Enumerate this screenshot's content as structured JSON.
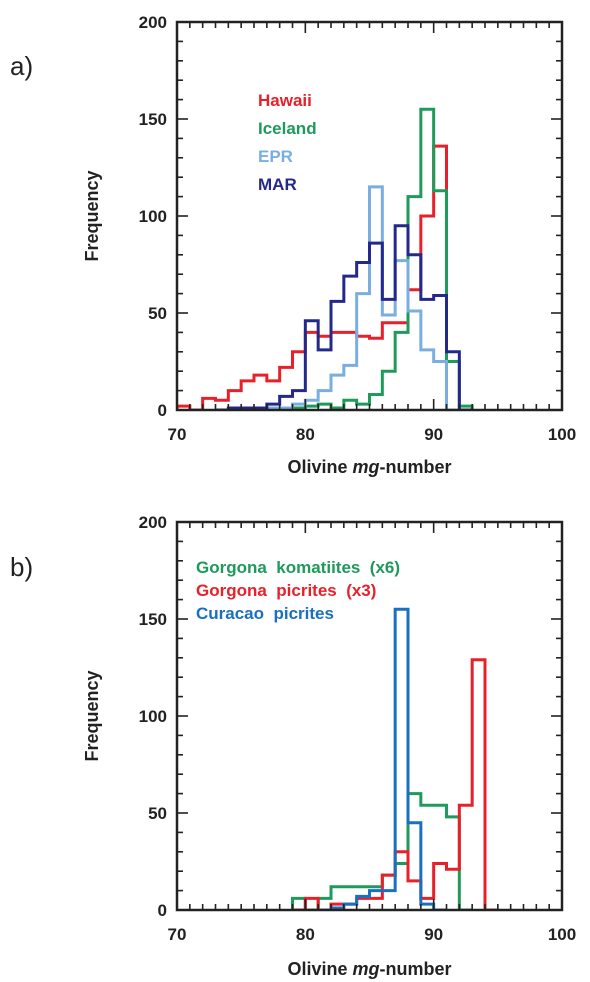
{
  "chart_data": [
    {
      "type": "histogram",
      "panel_label": "a)",
      "xlabel_plain": "Olivine ",
      "xlabel_italic": "mg",
      "xlabel_suffix": "-number",
      "ylabel": "Frequency",
      "xlim": [
        70,
        100
      ],
      "ylim": [
        0,
        200
      ],
      "x_ticks": [
        70,
        80,
        90,
        100
      ],
      "y_ticks": [
        0,
        50,
        100,
        150,
        200
      ],
      "bin_width": 1,
      "legend_position": "top-left",
      "series": [
        {
          "name": "Hawaii",
          "color": "#e8202a",
          "x": [
            70,
            71,
            72,
            73,
            74,
            75,
            76,
            77,
            78,
            79,
            80,
            81,
            82,
            83,
            84,
            85,
            86,
            87,
            88,
            89,
            90,
            91,
            92
          ],
          "y": [
            2,
            0,
            6,
            5,
            10,
            15,
            18,
            15,
            22,
            30,
            40,
            38,
            40,
            40,
            38,
            37,
            45,
            45,
            62,
            100,
            136,
            0,
            0
          ]
        },
        {
          "name": "Iceland",
          "color": "#1e9a5a",
          "x": [
            76,
            77,
            78,
            79,
            80,
            81,
            82,
            83,
            84,
            85,
            86,
            87,
            88,
            89,
            90,
            91,
            92
          ],
          "y": [
            1,
            1,
            0,
            1,
            2,
            3,
            1,
            5,
            3,
            8,
            20,
            40,
            110,
            155,
            113,
            25,
            2
          ]
        },
        {
          "name": "EPR",
          "color": "#7aaee0",
          "x": [
            75,
            76,
            77,
            78,
            79,
            80,
            81,
            82,
            83,
            84,
            85,
            86,
            87,
            88,
            89,
            90,
            91,
            92
          ],
          "y": [
            0,
            0,
            1,
            1,
            3,
            5,
            10,
            18,
            23,
            60,
            115,
            49,
            77,
            51,
            31,
            25,
            0,
            0
          ]
        },
        {
          "name": "MAR",
          "color": "#24288a",
          "x": [
            73,
            74,
            75,
            76,
            77,
            78,
            79,
            80,
            81,
            82,
            83,
            84,
            85,
            86,
            87,
            88,
            89,
            90,
            91,
            92
          ],
          "y": [
            0,
            1,
            1,
            1,
            3,
            7,
            10,
            46,
            31,
            56,
            69,
            76,
            86,
            57,
            95,
            80,
            57,
            59,
            30,
            0
          ]
        }
      ]
    },
    {
      "type": "histogram",
      "panel_label": "b)",
      "xlabel_plain": "Olivine ",
      "xlabel_italic": "mg",
      "xlabel_suffix": "-number",
      "ylabel": "Frequency",
      "xlim": [
        70,
        100
      ],
      "ylim": [
        0,
        200
      ],
      "x_ticks": [
        70,
        80,
        90,
        100
      ],
      "y_ticks": [
        0,
        50,
        100,
        150,
        200
      ],
      "bin_width": 1,
      "legend_position": "top-left",
      "series": [
        {
          "name": "Gorgona  komatiites  (x6)",
          "color": "#1e9a5a",
          "x": [
            79,
            80,
            81,
            82,
            83,
            84,
            85,
            86,
            87,
            88,
            89,
            90,
            91,
            92
          ],
          "y": [
            6,
            0,
            6,
            12,
            12,
            12,
            12,
            18,
            24,
            60,
            54,
            54,
            48,
            0
          ]
        },
        {
          "name": "Gorgona  picrites  (x3)",
          "color": "#e8202a",
          "x": [
            79,
            80,
            81,
            82,
            83,
            84,
            85,
            86,
            87,
            88,
            89,
            90,
            91,
            92,
            93,
            94
          ],
          "y": [
            0,
            6,
            0,
            3,
            3,
            6,
            6,
            18,
            30,
            15,
            6,
            24,
            21,
            54,
            129,
            0
          ]
        },
        {
          "name": "Curacao  picrites",
          "color": "#1a70c0",
          "x": [
            81,
            82,
            83,
            84,
            85,
            86,
            87,
            88,
            89,
            90
          ],
          "y": [
            0,
            1,
            3,
            7,
            10,
            10,
            155,
            45,
            3,
            0
          ]
        }
      ]
    }
  ]
}
